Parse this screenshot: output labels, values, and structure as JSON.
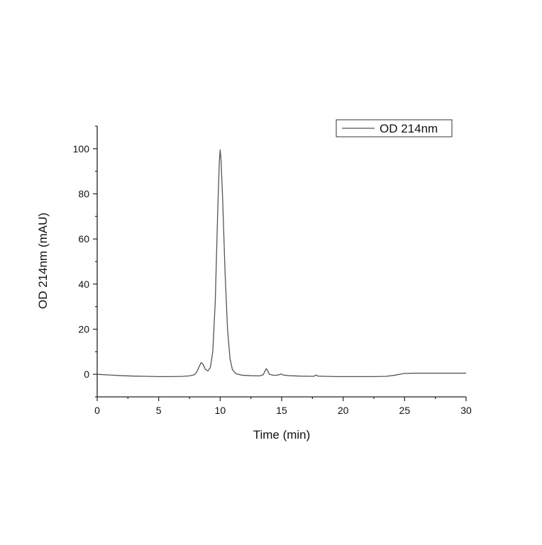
{
  "chart_data": {
    "type": "line",
    "xlabel": "Time (min)",
    "ylabel": "OD 214nm (mAU)",
    "xlim": [
      0,
      30
    ],
    "ylim": [
      -10,
      110
    ],
    "x_ticks": [
      0,
      5,
      10,
      15,
      20,
      25,
      30
    ],
    "y_ticks": [
      0,
      20,
      40,
      60,
      80,
      100
    ],
    "grid": false,
    "legend_position": "top-right",
    "line_color": "#555555",
    "series": [
      {
        "name": "OD 214nm",
        "points": [
          [
            0.0,
            0.0
          ],
          [
            1.0,
            -0.3
          ],
          [
            2.0,
            -0.6
          ],
          [
            3.0,
            -0.8
          ],
          [
            4.0,
            -0.9
          ],
          [
            5.0,
            -1.0
          ],
          [
            6.0,
            -1.0
          ],
          [
            7.0,
            -0.9
          ],
          [
            7.5,
            -0.7
          ],
          [
            7.9,
            -0.2
          ],
          [
            8.1,
            1.0
          ],
          [
            8.3,
            3.5
          ],
          [
            8.45,
            5.2
          ],
          [
            8.6,
            4.5
          ],
          [
            8.8,
            2.2
          ],
          [
            9.0,
            1.5
          ],
          [
            9.2,
            3.0
          ],
          [
            9.4,
            10.0
          ],
          [
            9.6,
            32.0
          ],
          [
            9.8,
            72.0
          ],
          [
            9.93,
            94.0
          ],
          [
            10.0,
            99.5
          ],
          [
            10.07,
            95.0
          ],
          [
            10.2,
            78.0
          ],
          [
            10.4,
            45.0
          ],
          [
            10.6,
            20.0
          ],
          [
            10.8,
            7.0
          ],
          [
            11.0,
            2.0
          ],
          [
            11.3,
            0.2
          ],
          [
            11.8,
            -0.4
          ],
          [
            12.5,
            -0.6
          ],
          [
            13.2,
            -0.7
          ],
          [
            13.5,
            -0.2
          ],
          [
            13.65,
            1.5
          ],
          [
            13.75,
            2.5
          ],
          [
            13.85,
            1.8
          ],
          [
            14.0,
            0.0
          ],
          [
            14.4,
            -0.5
          ],
          [
            14.8,
            -0.2
          ],
          [
            14.95,
            0.2
          ],
          [
            15.1,
            -0.3
          ],
          [
            15.6,
            -0.6
          ],
          [
            16.5,
            -0.8
          ],
          [
            17.6,
            -0.9
          ],
          [
            17.8,
            -0.3
          ],
          [
            17.95,
            -0.8
          ],
          [
            18.5,
            -0.9
          ],
          [
            19.5,
            -1.0
          ],
          [
            21.0,
            -1.0
          ],
          [
            22.5,
            -1.0
          ],
          [
            23.5,
            -0.9
          ],
          [
            24.2,
            -0.4
          ],
          [
            24.6,
            0.0
          ],
          [
            25.0,
            0.4
          ],
          [
            26.0,
            0.5
          ],
          [
            28.0,
            0.5
          ],
          [
            30.0,
            0.5
          ]
        ]
      }
    ]
  }
}
